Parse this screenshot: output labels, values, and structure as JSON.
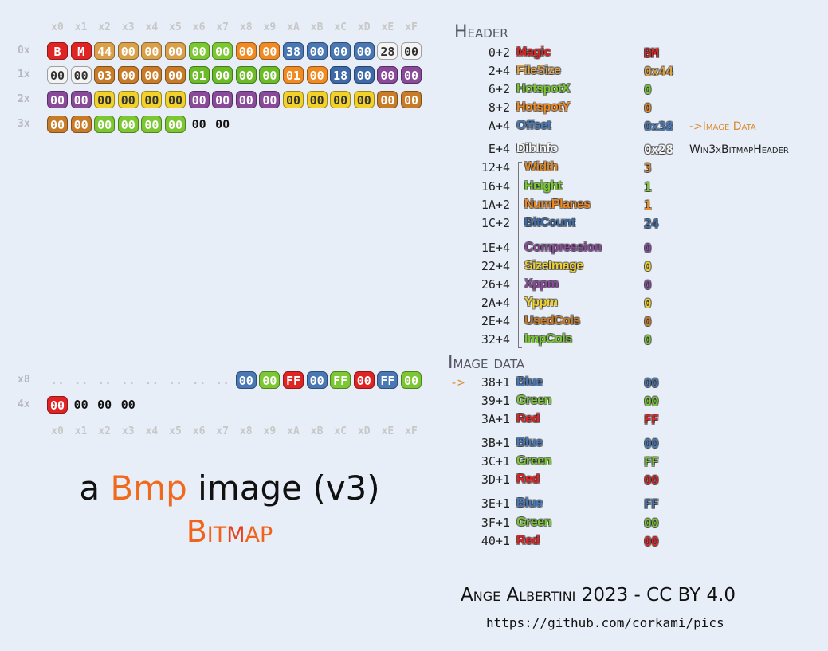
{
  "hex": {
    "columns": [
      "x0",
      "x1",
      "x2",
      "x3",
      "x4",
      "x5",
      "x6",
      "x7",
      "x8",
      "x9",
      "xA",
      "xB",
      "xC",
      "xD",
      "xE",
      "xF"
    ],
    "rows": [
      {
        "label": "0x",
        "groups": [
          {
            "color": "#e02424",
            "bytes": [
              "B",
              "M"
            ]
          },
          {
            "color": "#dba04a",
            "bytes": [
              "44",
              "00",
              "00",
              "00"
            ]
          },
          {
            "color": "#7cc832",
            "bytes": [
              "00",
              "00"
            ]
          },
          {
            "color": "#f08a22",
            "bytes": [
              "00",
              "00"
            ]
          },
          {
            "color": "#4a78b4",
            "bytes": [
              "38",
              "00",
              "00",
              "00"
            ]
          },
          {
            "color": "#f4f4f4",
            "bytes": [
              "28",
              "00"
            ]
          }
        ]
      },
      {
        "label": "1x",
        "groups": [
          {
            "color": "#f4f4f4",
            "bytes": [
              "00",
              "00"
            ]
          },
          {
            "color": "#c97c28",
            "bytes": [
              "03",
              "00",
              "00",
              "00"
            ]
          },
          {
            "color": "#6cbc28",
            "bytes": [
              "01",
              "00",
              "00",
              "00"
            ]
          },
          {
            "color": "#f08a22",
            "bytes": [
              "01",
              "00"
            ]
          },
          {
            "color": "#3e6aa8",
            "bytes": [
              "18",
              "00"
            ]
          },
          {
            "color": "#8a4a9a",
            "bytes": [
              "00",
              "00"
            ]
          }
        ]
      },
      {
        "label": "2x",
        "groups": [
          {
            "color": "#8a4a9a",
            "bytes": [
              "00",
              "00"
            ]
          },
          {
            "color": "#f2d22a",
            "bytes": [
              "00",
              "00",
              "00",
              "00"
            ]
          },
          {
            "color": "#8a4a9a",
            "bytes": [
              "00",
              "00",
              "00",
              "00"
            ]
          },
          {
            "color": "#f2d22a",
            "bytes": [
              "00",
              "00",
              "00",
              "00"
            ]
          },
          {
            "color": "#c97c28",
            "bytes": [
              "00",
              "00"
            ]
          }
        ]
      },
      {
        "label": "3x",
        "groups": [
          {
            "color": "#c97c28",
            "bytes": [
              "00",
              "00"
            ]
          },
          {
            "color": "#7cc832",
            "bytes": [
              "00",
              "00",
              "00",
              "00"
            ]
          },
          {
            "bytes": [
              "00",
              "00"
            ]
          }
        ]
      },
      {
        "label": "x8",
        "groups": [
          {
            "bytes": [
              "..",
              "..",
              "..",
              "..",
              "..",
              "..",
              "..",
              ".."
            ]
          },
          {
            "color": "#4a78b4",
            "bytes": [
              "00"
            ]
          },
          {
            "color": "#7cc832",
            "bytes": [
              "00"
            ]
          },
          {
            "color": "#e02424",
            "bytes": [
              "FF"
            ]
          },
          {
            "color": "#4a78b4",
            "bytes": [
              "00"
            ]
          },
          {
            "color": "#7cc832",
            "bytes": [
              "FF"
            ]
          },
          {
            "color": "#e02424",
            "bytes": [
              "00"
            ]
          },
          {
            "color": "#4a78b4",
            "bytes": [
              "FF"
            ]
          },
          {
            "color": "#7cc832",
            "bytes": [
              "00"
            ]
          }
        ]
      },
      {
        "label": "4x",
        "groups": [
          {
            "color": "#e02424",
            "bytes": [
              "00"
            ]
          },
          {
            "bytes": [
              "00",
              "00",
              "00"
            ]
          }
        ]
      }
    ]
  },
  "header": {
    "title": "Header",
    "fields": [
      {
        "offset": "0+2",
        "name": "Magic",
        "value": "BM",
        "color": "#e02424"
      },
      {
        "offset": "2+4",
        "name": "FileSize",
        "value": "0x44",
        "color": "#dba04a"
      },
      {
        "offset": "6+2",
        "name": "HotspotX",
        "value": "0",
        "color": "#7cc832"
      },
      {
        "offset": "8+2",
        "name": "HotspotY",
        "value": "0",
        "color": "#f08a22"
      },
      {
        "offset": "A+4",
        "name": "Offset",
        "value": "0x38",
        "color": "#4a78b4",
        "note": "->Image Data"
      },
      {
        "offset": "E+4",
        "name": "DibInfo",
        "value": "0x28",
        "color": "#f4f4f4",
        "note": "Win3xBitmapHeader",
        "children": [
          {
            "offset": "12+4",
            "name": "Width",
            "value": "3",
            "color": "#d98a2e"
          },
          {
            "offset": "16+4",
            "name": "Height",
            "value": "1",
            "color": "#7cc832"
          },
          {
            "offset": "1A+2",
            "name": "NumPlanes",
            "value": "1",
            "color": "#f08a22"
          },
          {
            "offset": "1C+2",
            "name": "BitCount",
            "value": "24",
            "color": "#3e6aa8"
          },
          {
            "offset": "1E+4",
            "name": "Compression",
            "value": "0",
            "color": "#8a4a9a"
          },
          {
            "offset": "22+4",
            "name": "SizeImage",
            "value": "0",
            "color": "#f2d22a"
          },
          {
            "offset": "26+4",
            "name": "Xppm",
            "value": "0",
            "color": "#8a4a9a"
          },
          {
            "offset": "2A+4",
            "name": "Yppm",
            "value": "0",
            "color": "#f2d22a"
          },
          {
            "offset": "2E+4",
            "name": "UsedCols",
            "value": "0",
            "color": "#c97c28"
          },
          {
            "offset": "32+4",
            "name": "ImpCols",
            "value": "0",
            "color": "#7cc832"
          }
        ]
      }
    ]
  },
  "image_data": {
    "title": "Image data",
    "marker": "->",
    "pixels": [
      [
        {
          "offset": "38+1",
          "name": "Blue",
          "value": "00",
          "color": "#4a78b4"
        },
        {
          "offset": "39+1",
          "name": "Green",
          "value": "00",
          "color": "#7cc832"
        },
        {
          "offset": "3A+1",
          "name": "Red",
          "value": "FF",
          "color": "#e02424"
        }
      ],
      [
        {
          "offset": "3B+1",
          "name": "Blue",
          "value": "00",
          "color": "#4a78b4"
        },
        {
          "offset": "3C+1",
          "name": "Green",
          "value": "FF",
          "color": "#7cc832"
        },
        {
          "offset": "3D+1",
          "name": "Red",
          "value": "00",
          "color": "#e02424"
        }
      ],
      [
        {
          "offset": "3E+1",
          "name": "Blue",
          "value": "FF",
          "color": "#4a78b4"
        },
        {
          "offset": "3F+1",
          "name": "Green",
          "value": "00",
          "color": "#7cc832"
        },
        {
          "offset": "40+1",
          "name": "Red",
          "value": "00",
          "color": "#e02424"
        }
      ]
    ]
  },
  "title": [
    {
      "text": "a "
    },
    {
      "text": "Bmp",
      "color": "#f06a1e"
    },
    {
      "text": " image (v3)"
    }
  ],
  "subtitle": [
    {
      "text": "Bit",
      "color": "#f2621a"
    },
    {
      "text": "m",
      "color": "#e8401a"
    },
    {
      "text": "ap",
      "color": "#f2621a"
    }
  ],
  "footer": {
    "author": "Ange Albertini 2023 - CC BY 4.0",
    "url": "https://github.com/corkami/pics"
  }
}
